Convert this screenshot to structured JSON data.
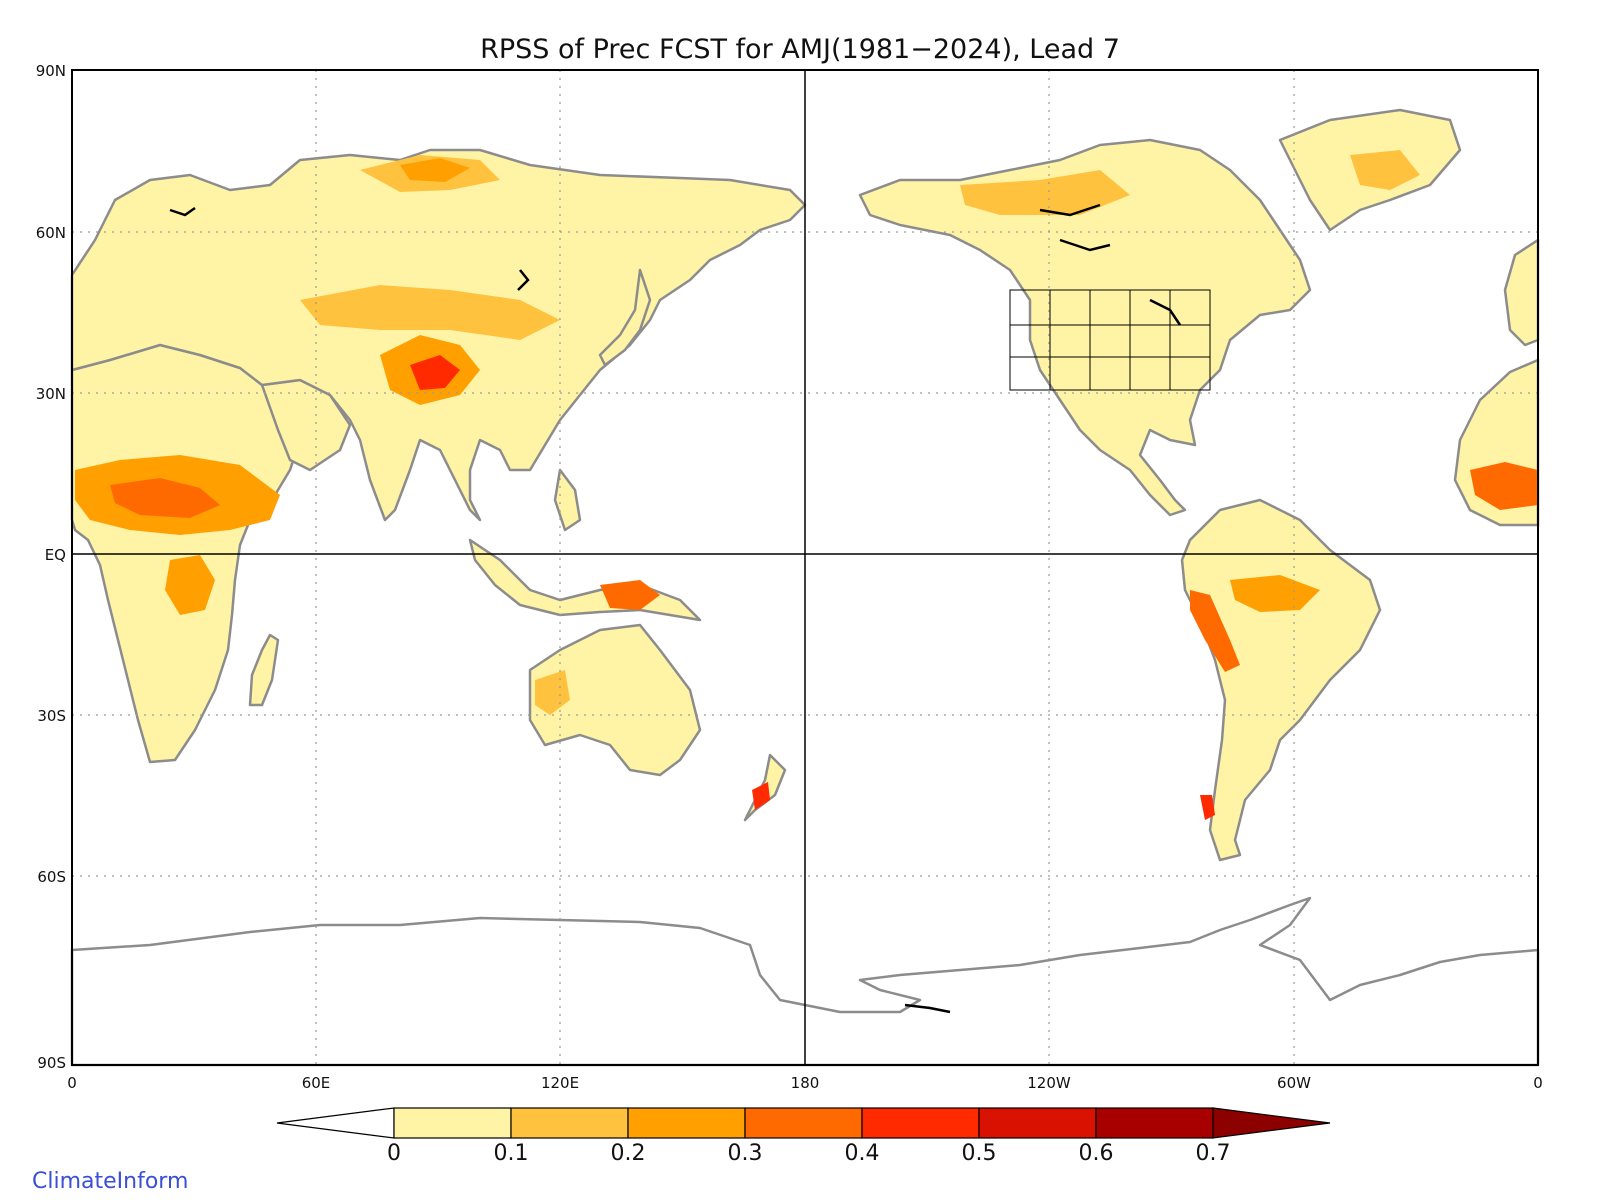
{
  "title": "RPSS of Prec FCST for AMJ(1981−2024), Lead 7",
  "y_ticks": [
    "90N",
    "60N",
    "30N",
    "EQ",
    "30S",
    "60S",
    "90S"
  ],
  "x_ticks": [
    "0",
    "60E",
    "120E",
    "180",
    "120W",
    "60W",
    "0"
  ],
  "colorbar": {
    "labels": [
      "0",
      "0.1",
      "0.2",
      "0.3",
      "0.4",
      "0.5",
      "0.6",
      "0.7"
    ],
    "colors": [
      "#ffffff",
      "#fff3a6",
      "#ffc23f",
      "#ff9f00",
      "#ff6a00",
      "#ff2a00",
      "#d81100",
      "#a80000",
      "#8c0000"
    ]
  },
  "colors": {
    "coastline": "#8c8c8c",
    "lakes": "#000000",
    "grid": "#9a9a9a",
    "credit": "#3a4fd6"
  },
  "credit": "ClimateInform"
}
